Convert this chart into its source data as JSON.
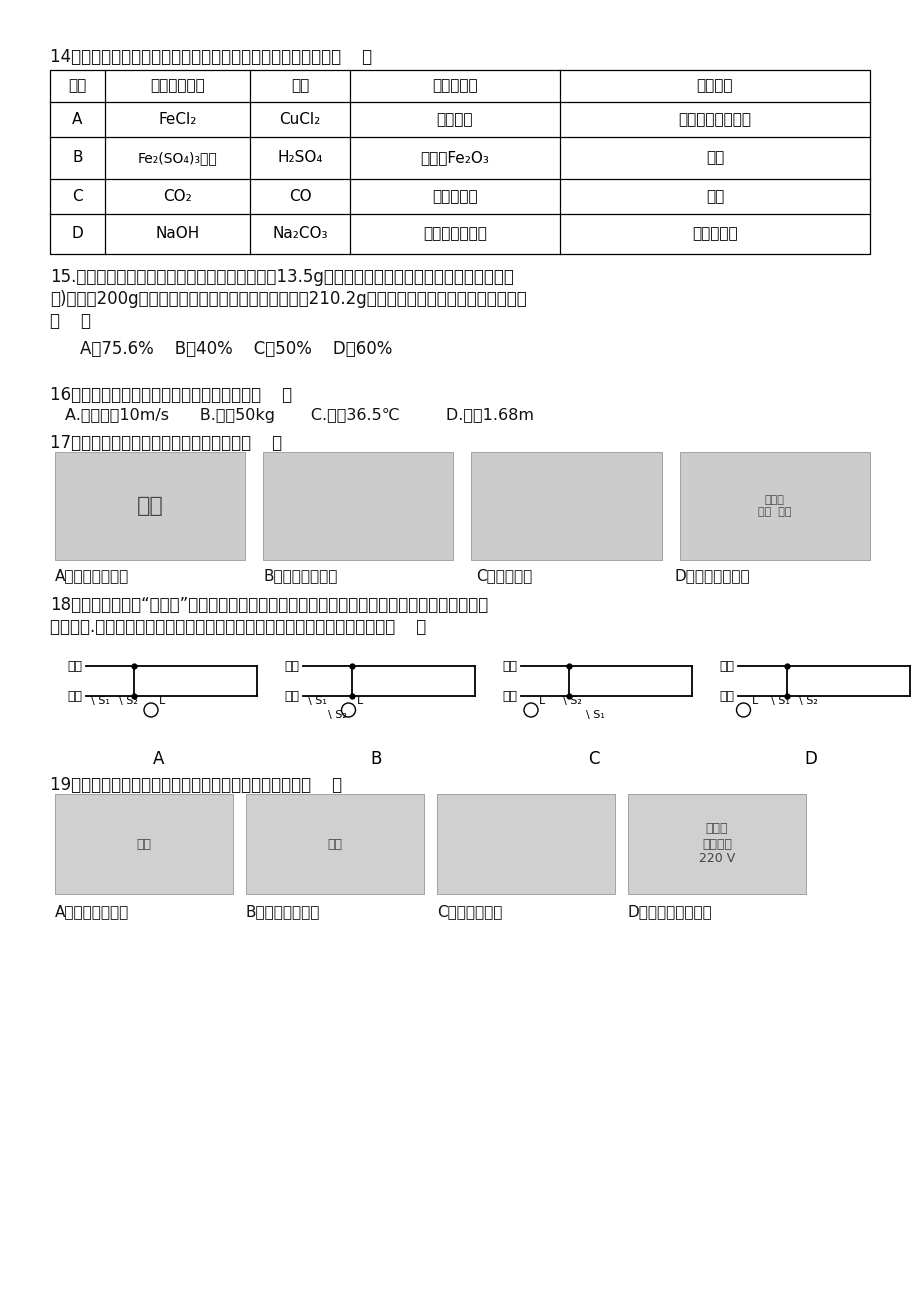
{
  "background_color": "#ffffff",
  "q14_text": "14．实验室中，下列除去杂质所用试剂及操作方法均正确的是（    ）",
  "table_headers": [
    "选项",
    "待提纯的物质",
    "杂质",
    "选用的试剂",
    "操作方法"
  ],
  "table_rows": [
    [
      "A",
      "FeCl₂",
      "CuCl₂",
      "足量铁粉",
      "过滤、蕲发、结晶"
    ],
    [
      "B",
      "Fe₂(SO₄)₃溶液",
      "H₂SO₄",
      "足量的Fe₂O₃",
      "过滤"
    ],
    [
      "C",
      "CO₂",
      "CO",
      "过量的氧气",
      "点燃"
    ],
    [
      "D",
      "NaOH",
      "Na₂CO₃",
      "加适量的稀盐酸",
      "蕲发、结晶"
    ]
  ],
  "table_col_widths": [
    55,
    145,
    100,
    210,
    310
  ],
  "table_row_heights": [
    32,
    35,
    42,
    35,
    40
  ],
  "q15_line1": "15.实验室测定某铝土矿中铝元素的质量分数，取13.5g含杂质的铝土矿（杂质不溢于水也不与酸反",
  "q15_line2": "应)加入到200g稀盐酸中，恰好完全反应，过滤得滤液210.2g，则该铝土矿中铝元素的质量分数为",
  "q15_line3": "（    ）",
  "q15_options": "A．75.6%    B．40%    C．50%    D．60%",
  "q16_text": "16．某中学生的信息档案中，错误的信息是（    ）",
  "q16_options": "A.步行速度10m/s      B.质量50kg       C.体溓36.5℃         D.身高1.68m",
  "q17_text": "17．下列游戏中，利用光的反射现象的是（    ）",
  "q17_labels": [
    "A．放大镜的游戏",
    "B．小猫叉鱼游戏",
    "C．手影游戏",
    "D．隔墙看猫游戏"
  ],
  "q18_text1": "18．楼道中常见的“声光控”照明灯，当声、光强度均达到一定程度时，灯泡会正常发光，否则灯",
  "q18_text2": "泡不发光.下面的四幅电路图中，既满足上述条件，又符合安全用电要求的是（    ）",
  "q18_labels": [
    "A",
    "B",
    "C",
    "D"
  ],
  "q19_text": "19．如图关于仪表的正确使用和电路常规连接正确的是（    ）",
  "q19_labels": [
    "A．电流表接电源",
    "B．电压表接电源",
    "C．导线接电源",
    "D．家用电器接电源"
  ]
}
